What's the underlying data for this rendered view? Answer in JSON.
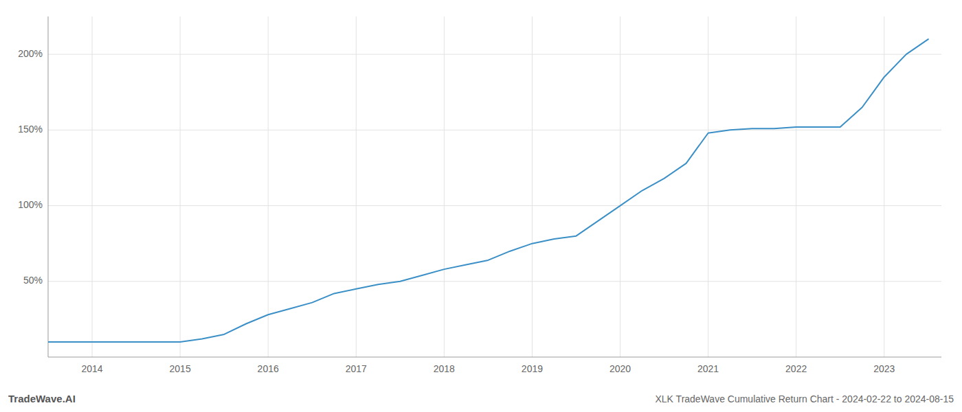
{
  "chart_data": {
    "type": "line",
    "title": "XLK TradeWave Cumulative Return Chart - 2024-02-22 to 2024-08-15",
    "annotations": [
      "TradeWave.AI"
    ],
    "x": [
      2013.5,
      2013.75,
      2014.0,
      2014.25,
      2014.5,
      2014.75,
      2015.0,
      2015.25,
      2015.5,
      2015.75,
      2016.0,
      2016.25,
      2016.5,
      2016.75,
      2017.0,
      2017.25,
      2017.5,
      2017.75,
      2018.0,
      2018.25,
      2018.5,
      2018.75,
      2019.0,
      2019.25,
      2019.5,
      2019.75,
      2020.0,
      2020.25,
      2020.5,
      2020.75,
      2021.0,
      2021.25,
      2021.5,
      2021.75,
      2022.0,
      2022.25,
      2022.5,
      2022.75,
      2023.0,
      2023.25,
      2023.5
    ],
    "values": [
      10,
      10,
      10,
      10,
      10,
      10,
      10,
      12,
      15,
      22,
      28,
      32,
      36,
      42,
      45,
      48,
      50,
      54,
      58,
      61,
      64,
      70,
      75,
      78,
      80,
      90,
      100,
      110,
      118,
      128,
      148,
      150,
      151,
      151,
      152,
      152,
      152,
      165,
      185,
      200,
      210
    ],
    "color": "#3a8fc7",
    "xlim": [
      2013.5,
      2023.65
    ],
    "xticks": [
      2014,
      2015,
      2016,
      2017,
      2018,
      2019,
      2020,
      2021,
      2022,
      2023
    ],
    "ylim": [
      0,
      225
    ],
    "yticks": [
      {
        "value": 50,
        "label": "50%"
      },
      {
        "value": 100,
        "label": "100%"
      },
      {
        "value": 150,
        "label": "150%"
      },
      {
        "value": 200,
        "label": "200%"
      }
    ],
    "grid": true
  }
}
